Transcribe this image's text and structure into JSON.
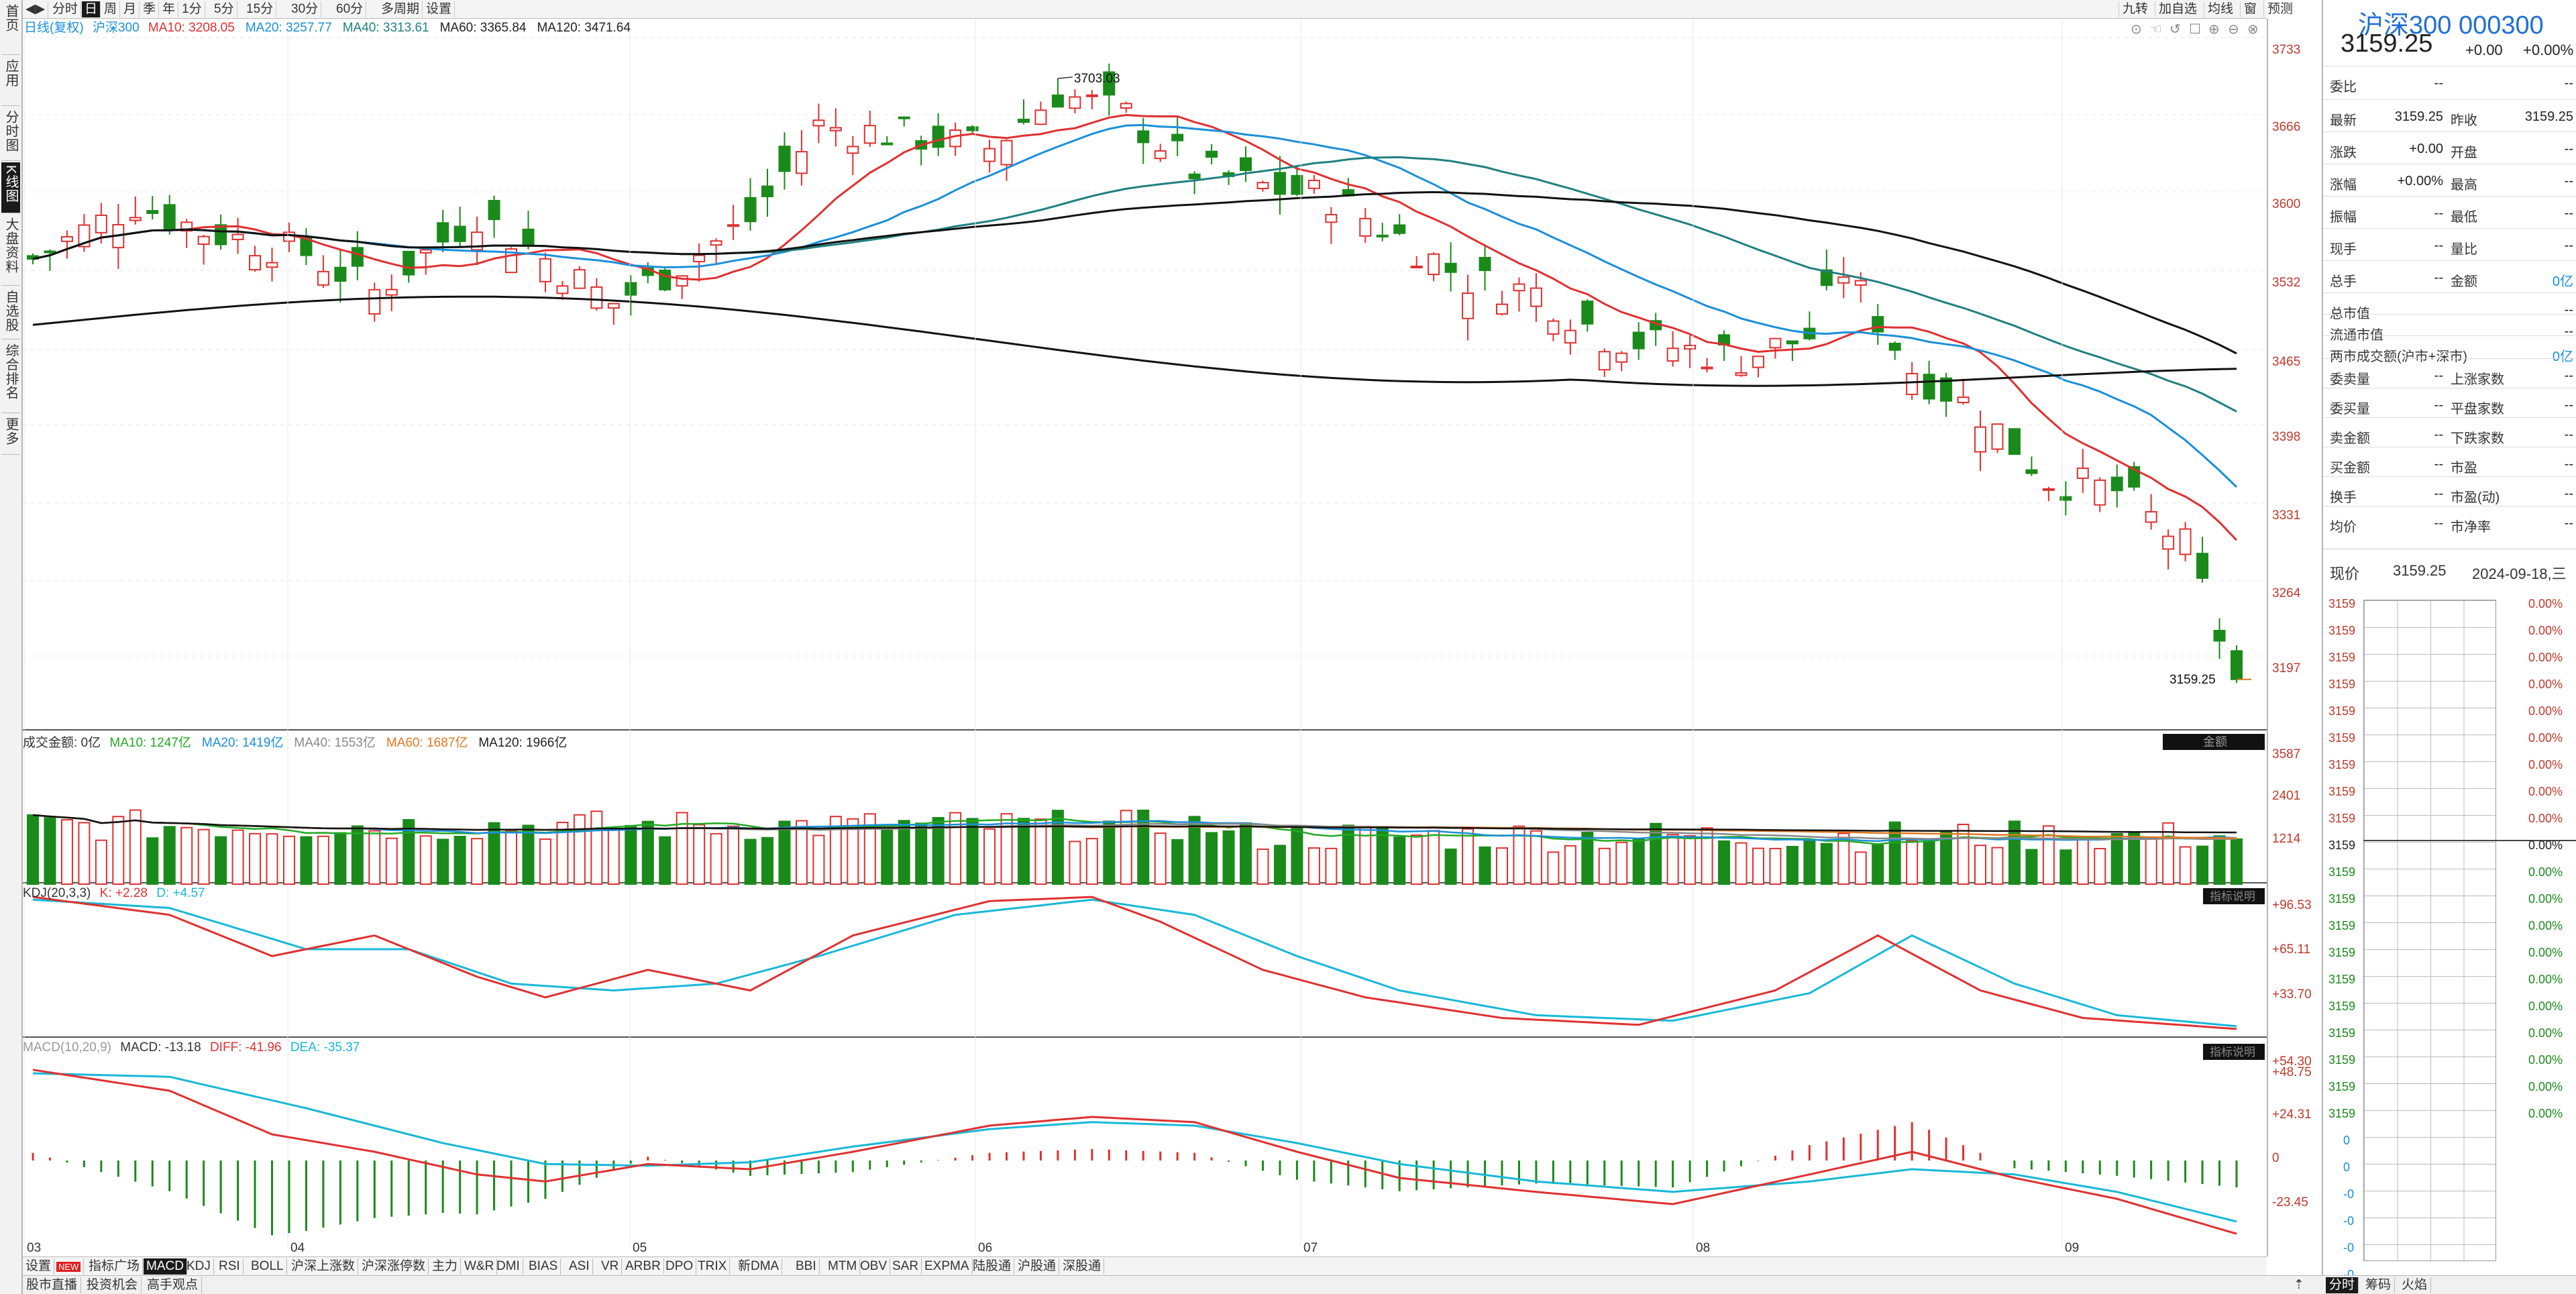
{
  "left_nav": [
    {
      "label": "首页"
    },
    {
      "label": "应用"
    },
    {
      "label": "分时图"
    },
    {
      "label": "K线图",
      "active": true
    },
    {
      "label": "大盘资料"
    },
    {
      "label": "自选股"
    },
    {
      "label": "综合排名"
    },
    {
      "label": "更多"
    }
  ],
  "toolbar": {
    "items": [
      "分时",
      "日",
      "周",
      "月",
      "季",
      "年",
      "1分",
      "5分",
      "15分",
      "30分",
      "60分",
      "多周期",
      "设置"
    ],
    "active": "日",
    "right_items": [
      "九转",
      "加自选",
      "均线",
      "窗",
      "预测"
    ]
  },
  "price_chart": {
    "legend_name": "日线(复权)",
    "symbol": "沪深300",
    "ma_legend": [
      {
        "name": "MA10",
        "value": "3208.05",
        "color": "#e03030"
      },
      {
        "name": "MA20",
        "value": "3257.77",
        "color": "#1a8fdb"
      },
      {
        "name": "MA40",
        "value": "3313.61",
        "color": "#1f8080"
      },
      {
        "name": "MA60",
        "value": "3365.84",
        "color": "#222222"
      },
      {
        "name": "MA120",
        "value": "3471.64",
        "color": "#222222"
      }
    ],
    "high_label": "3703.03",
    "last_label": "3159.25",
    "y_ticks": [
      "3733",
      "3666",
      "3600",
      "3532",
      "3465",
      "3398",
      "3331",
      "3264",
      "3197"
    ],
    "x_ticks": [
      "03",
      "04",
      "05",
      "06",
      "07",
      "08",
      "09"
    ]
  },
  "volume_chart": {
    "legend_name": "成交金额: 0亿",
    "ma_legend": [
      {
        "name": "MA10",
        "value": "1247亿",
        "color": "#22aa22"
      },
      {
        "name": "MA20",
        "value": "1419亿",
        "color": "#1a8fdb"
      },
      {
        "name": "MA40",
        "value": "1553亿",
        "color": "#888888"
      },
      {
        "name": "MA60",
        "value": "1687亿",
        "color": "#e07820"
      },
      {
        "name": "MA120",
        "value": "1966亿",
        "color": "#222222"
      }
    ],
    "tag": "金额",
    "y_ticks": [
      "3587",
      "2401",
      "1214"
    ]
  },
  "kdj_chart": {
    "legend_name": "KDJ(20,3,3)",
    "k_label": "K: +2.28",
    "d_label": "D: +4.57",
    "tag": "指标说明",
    "y_ticks": [
      "+96.53",
      "+65.11",
      "+33.70"
    ]
  },
  "macd_chart": {
    "legend_name": "MACD(10,20,9)",
    "macd_label": "MACD: -13.18",
    "diff_label": "DIFF: -41.96",
    "dea_label": "DEA: -35.37",
    "tag": "指标说明",
    "y_ticks": [
      "+54.30",
      "+48.75",
      "+24.31",
      "0",
      "-23.45"
    ]
  },
  "bottom_tabs": {
    "items": [
      "设置",
      "NEW",
      "指标广场",
      "MACD",
      "KDJ",
      "RSI",
      "BOLL",
      "沪深上涨数",
      "沪深涨停数",
      "主力",
      "W&R",
      "DMI",
      "BIAS",
      "ASI",
      "VR",
      "ARBR",
      "DPO",
      "TRIX",
      "新DMA",
      "BBI",
      "MTM",
      "OBV",
      "SAR",
      "EXPMA",
      "陆股通",
      "沪股通",
      "深股通"
    ],
    "active": "MACD"
  },
  "bottom_bar": [
    "股市直播",
    "投资机会",
    "高手观点"
  ],
  "right_panel": {
    "title": "沪深300 000300",
    "price": "3159.25",
    "change": "+0.00",
    "change_pct": "+0.00%",
    "rows1": [
      {
        "l": "委比",
        "v": "--",
        "l2": "",
        "v2": "--"
      }
    ],
    "rows2": [
      {
        "l": "最新",
        "v": "3159.25",
        "l2": "昨收",
        "v2": "3159.25"
      },
      {
        "l": "涨跌",
        "v": "+0.00",
        "l2": "开盘",
        "v2": "--"
      },
      {
        "l": "涨幅",
        "v": "+0.00%",
        "l2": "最高",
        "v2": "--"
      },
      {
        "l": "振幅",
        "v": "--",
        "l2": "最低",
        "v2": "--"
      },
      {
        "l": "现手",
        "v": "--",
        "l2": "量比",
        "v2": "--"
      },
      {
        "l": "总手",
        "v": "--",
        "l2": "金额",
        "v2": "0亿"
      }
    ],
    "rows3": [
      {
        "l": "总市值",
        "v": "--"
      },
      {
        "l": "流通市值",
        "v": "--"
      },
      {
        "l": "两市成交额(沪市+深市)",
        "v": "0亿"
      }
    ],
    "rows4": [
      {
        "l": "委卖量",
        "v": "--",
        "l2": "上涨家数",
        "v2": "--"
      },
      {
        "l": "委买量",
        "v": "--",
        "l2": "平盘家数",
        "v2": "--"
      },
      {
        "l": "卖金额",
        "v": "--",
        "l2": "下跌家数",
        "v2": "--"
      },
      {
        "l": "买金额",
        "v": "--",
        "l2": "市盈",
        "v2": "--"
      },
      {
        "l": "换手",
        "v": "--",
        "l2": "市盈(动)",
        "v2": "--"
      },
      {
        "l": "均价",
        "v": "--",
        "l2": "市净率",
        "v2": "--"
      }
    ],
    "mini_label": "现价",
    "mini_price": "3159.25",
    "mini_date": "2024-09-18,三",
    "mini_left": [
      "3159",
      "3159",
      "3159",
      "3159",
      "3159",
      "3159",
      "3159",
      "3159",
      "3159",
      "3159",
      "3159",
      "3159",
      "3159",
      "3159",
      "3159",
      "3159",
      "3159",
      "3159",
      "3159",
      "3159",
      "0",
      "0",
      "-0",
      "-0",
      "-0",
      "-0",
      "-0",
      "-0"
    ],
    "mini_right": [
      "0.00%",
      "0.00%",
      "0.00%",
      "0.00%",
      "0.00%",
      "0.00%",
      "0.00%",
      "0.00%",
      "0.00%",
      "0.00%",
      "0.00%",
      "0.00%",
      "0.00%",
      "0.00%",
      "0.00%",
      "0.00%",
      "0.00%",
      "0.00%",
      "0.00%",
      "0.00%"
    ],
    "bottom_tabs": [
      "分时",
      "筹码",
      "火焰"
    ]
  }
}
